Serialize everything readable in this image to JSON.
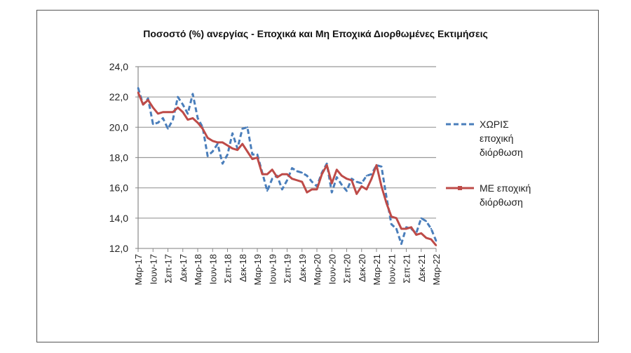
{
  "chart_data": {
    "type": "line",
    "title": "Ποσοστό (%) ανεργίας - Εποχικά και Μη Εποχικά Διορθωμένες Εκτιμήσεις",
    "xlabel": "",
    "ylabel": "",
    "ylim": [
      12,
      24
    ],
    "yticks": [
      "12,0",
      "14,0",
      "16,0",
      "18,0",
      "20,0",
      "22,0",
      "24,0"
    ],
    "ytick_values": [
      12,
      14,
      16,
      18,
      20,
      22,
      24
    ],
    "xtick_labels": [
      "Μαρ-17",
      "Ιουν-17",
      "Σεπ-17",
      "Δεκ-17",
      "Μαρ-18",
      "Ιουν-18",
      "Σεπ-18",
      "Δεκ-18",
      "Μαρ-19",
      "Ιουν-19",
      "Σεπ-19",
      "Δεκ-19",
      "Μαρ-20",
      "Ιουν-20",
      "Σεπ-20",
      "Δεκ-20",
      "Μαρ-21",
      "Ιουν-21",
      "Σεπ-21",
      "Δεκ-21",
      "Μαρ-22"
    ],
    "grid": true,
    "legend_position": "right",
    "series": [
      {
        "name": "ΧΩΡΙΣ εποχική διόρθωση",
        "legend_lines": [
          "ΧΩΡΙΣ",
          "εποχική",
          "διόρθωση"
        ],
        "color": "#4a7ebb",
        "style": "dashed",
        "values": [
          22.6,
          21.5,
          21.9,
          20.2,
          20.3,
          20.6,
          19.9,
          20.5,
          22.0,
          21.5,
          20.9,
          22.2,
          20.6,
          20.0,
          18.1,
          18.4,
          18.9,
          17.6,
          18.2,
          19.6,
          18.6,
          19.9,
          20.0,
          18.2,
          18.2,
          17.0,
          15.8,
          16.6,
          16.8,
          15.9,
          16.5,
          17.3,
          17.1,
          17.0,
          16.8,
          16.4,
          16.1,
          17.0,
          17.6,
          15.7,
          16.7,
          16.2,
          15.8,
          16.6,
          16.4,
          16.3,
          16.8,
          16.9,
          17.5,
          17.4,
          15.4,
          13.6,
          13.3,
          12.3,
          13.4,
          13.3,
          13.0,
          14.0,
          13.8,
          13.3,
          12.5
        ]
      },
      {
        "name": "ΜΕ εποχική διόρθωση",
        "legend_lines": [
          "ΜΕ εποχική",
          "διόρθωση"
        ],
        "color": "#be4b48",
        "style": "solid",
        "values": [
          22.3,
          21.5,
          21.8,
          21.3,
          20.9,
          21.0,
          21.0,
          21.0,
          21.3,
          21.0,
          20.5,
          20.6,
          20.3,
          19.9,
          19.3,
          19.1,
          19.0,
          19.0,
          18.8,
          18.6,
          18.5,
          18.9,
          18.4,
          17.9,
          18.0,
          16.9,
          16.9,
          17.2,
          16.7,
          16.9,
          16.9,
          16.6,
          16.5,
          16.4,
          15.7,
          15.9,
          15.9,
          16.9,
          17.5,
          16.3,
          17.2,
          16.8,
          16.6,
          16.5,
          15.6,
          16.1,
          15.9,
          16.6,
          17.5,
          16.1,
          15.0,
          14.1,
          14.0,
          13.3,
          13.3,
          13.4,
          12.9,
          13.0,
          12.7,
          12.6,
          12.2
        ]
      }
    ]
  }
}
